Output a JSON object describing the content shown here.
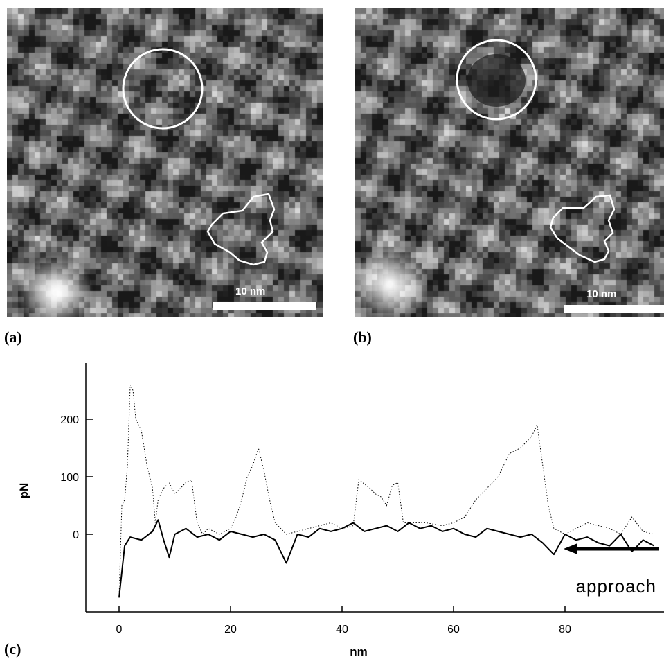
{
  "panels": [
    {
      "label": "(a)",
      "scale_bar": "10 nm"
    },
    {
      "label": "(b)",
      "scale_bar": "10 nm"
    },
    {
      "label": "(c)"
    }
  ],
  "chart_data": {
    "type": "line",
    "xlabel": "nm",
    "ylabel": "pN",
    "xlim": [
      -6,
      97
    ],
    "ylim": [
      -130,
      310
    ],
    "x_ticks": [
      0,
      20,
      40,
      60,
      80
    ],
    "y_ticks": [
      0,
      100,
      200
    ],
    "series": [
      {
        "style": "solid",
        "points": [
          [
            0,
            -110
          ],
          [
            1,
            -20
          ],
          [
            2,
            -5
          ],
          [
            4,
            -10
          ],
          [
            6,
            5
          ],
          [
            7,
            25
          ],
          [
            8,
            -10
          ],
          [
            9,
            -40
          ],
          [
            10,
            0
          ],
          [
            12,
            10
          ],
          [
            14,
            -5
          ],
          [
            16,
            0
          ],
          [
            18,
            -10
          ],
          [
            20,
            5
          ],
          [
            22,
            0
          ],
          [
            24,
            -5
          ],
          [
            26,
            0
          ],
          [
            28,
            -10
          ],
          [
            30,
            -50
          ],
          [
            32,
            0
          ],
          [
            34,
            -5
          ],
          [
            36,
            10
          ],
          [
            38,
            5
          ],
          [
            40,
            10
          ],
          [
            42,
            20
          ],
          [
            44,
            5
          ],
          [
            46,
            10
          ],
          [
            48,
            15
          ],
          [
            50,
            5
          ],
          [
            52,
            20
          ],
          [
            54,
            10
          ],
          [
            56,
            15
          ],
          [
            58,
            5
          ],
          [
            60,
            10
          ],
          [
            62,
            0
          ],
          [
            64,
            -5
          ],
          [
            66,
            10
          ],
          [
            68,
            5
          ],
          [
            70,
            0
          ],
          [
            72,
            -5
          ],
          [
            74,
            0
          ],
          [
            76,
            -15
          ],
          [
            78,
            -35
          ],
          [
            80,
            0
          ],
          [
            82,
            -10
          ],
          [
            84,
            -5
          ],
          [
            86,
            -15
          ],
          [
            88,
            -20
          ],
          [
            90,
            0
          ],
          [
            92,
            -30
          ],
          [
            94,
            -10
          ],
          [
            96,
            -20
          ]
        ]
      },
      {
        "style": "dotted",
        "points": [
          [
            0,
            -110
          ],
          [
            0.5,
            50
          ],
          [
            1,
            60
          ],
          [
            1.5,
            120
          ],
          [
            2,
            260
          ],
          [
            2.5,
            250
          ],
          [
            3,
            200
          ],
          [
            4,
            180
          ],
          [
            5,
            120
          ],
          [
            6,
            80
          ],
          [
            6.5,
            20
          ],
          [
            7,
            60
          ],
          [
            8,
            80
          ],
          [
            9,
            90
          ],
          [
            10,
            70
          ],
          [
            11,
            80
          ],
          [
            12,
            90
          ],
          [
            13,
            95
          ],
          [
            14,
            20
          ],
          [
            15,
            0
          ],
          [
            16,
            10
          ],
          [
            18,
            0
          ],
          [
            20,
            10
          ],
          [
            21,
            30
          ],
          [
            22,
            60
          ],
          [
            23,
            100
          ],
          [
            24,
            120
          ],
          [
            25,
            150
          ],
          [
            26,
            110
          ],
          [
            27,
            60
          ],
          [
            28,
            20
          ],
          [
            30,
            0
          ],
          [
            34,
            10
          ],
          [
            38,
            20
          ],
          [
            40,
            10
          ],
          [
            42,
            15
          ],
          [
            43,
            95
          ],
          [
            45,
            80
          ],
          [
            46,
            70
          ],
          [
            47,
            65
          ],
          [
            48,
            50
          ],
          [
            49,
            85
          ],
          [
            50,
            90
          ],
          [
            51,
            20
          ],
          [
            55,
            20
          ],
          [
            58,
            15
          ],
          [
            60,
            20
          ],
          [
            62,
            30
          ],
          [
            64,
            60
          ],
          [
            66,
            80
          ],
          [
            68,
            100
          ],
          [
            70,
            140
          ],
          [
            72,
            150
          ],
          [
            74,
            170
          ],
          [
            75,
            190
          ],
          [
            76,
            120
          ],
          [
            77,
            50
          ],
          [
            78,
            10
          ],
          [
            80,
            0
          ],
          [
            84,
            20
          ],
          [
            88,
            10
          ],
          [
            90,
            0
          ],
          [
            92,
            30
          ],
          [
            94,
            5
          ],
          [
            96,
            0
          ]
        ]
      }
    ],
    "annotations": [
      {
        "text": "approach",
        "arrow": "left"
      }
    ]
  }
}
